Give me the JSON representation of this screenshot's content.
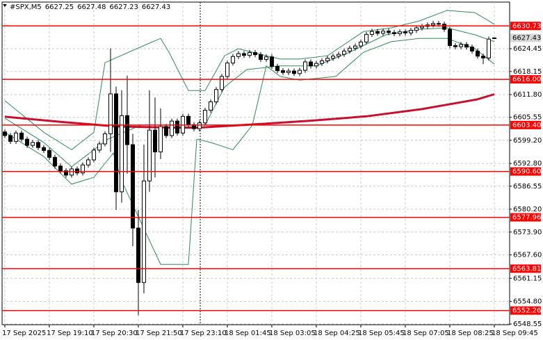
{
  "chart_data": {
    "type": "candlestick",
    "symbol": "#SPX,M5",
    "ylim": [
      6548.36,
      6637.3
    ],
    "xlim": [
      -0.5,
      90.75
    ],
    "grid": true,
    "bull_color": "#ffffff",
    "bear_color": "#000000",
    "yticks": [
      6624.45,
      6618.15,
      {
        "value": 6611.8,
        "label": "6611.80"
      },
      6605.55,
      {
        "value": 6599.2,
        "label": "6599.20"
      },
      {
        "value": 6592.8,
        "label": "6592.80"
      },
      6586.55,
      {
        "value": 6580.2,
        "label": "6580.20"
      },
      {
        "value": 6573.9,
        "label": "6573.90"
      },
      {
        "value": 6567.6,
        "label": "6567.60"
      },
      6561.15,
      {
        "value": 6554.8,
        "label": "6554.80"
      },
      6548.55
    ],
    "xticks": [
      {
        "value": 0,
        "label": "17 Sep 2025"
      },
      {
        "value": 8,
        "label": "17 Sep 19:10"
      },
      {
        "value": 16,
        "label": "17 Sep 20:30"
      },
      {
        "value": 24,
        "label": "17 Sep 21:50"
      },
      {
        "value": 32,
        "label": "17 Sep 23:10"
      },
      {
        "value": 40,
        "label": "18 Sep 01:45"
      },
      {
        "value": 48,
        "label": "18 Sep 03:05"
      },
      {
        "value": 56,
        "label": "18 Sep 04:25"
      },
      {
        "value": 64,
        "label": "18 Sep 05:45"
      },
      {
        "value": 72,
        "label": "18 Sep 07:05"
      },
      {
        "value": 80,
        "label": "18 Sep 08:25"
      },
      {
        "value": 88,
        "label": "18 Sep 09:45"
      }
    ],
    "open": [
      6601.5,
      6600.5,
      6598.9,
      6601.2,
      6599.5,
      6597.8,
      6598.6,
      6597.2,
      6596.4,
      6594.5,
      6592.1,
      6590.8,
      6589.6,
      6591.3,
      6590.2,
      6592.4,
      6593.8,
      6596.5,
      6598.2,
      6601.0,
      6612.0,
      6585.0,
      6606.0,
      6598.0,
      6575.0,
      6560.0,
      6588.0,
      6602.0,
      6596.0,
      6603.0,
      6600.5,
      6604.5,
      6601.2,
      6605.8,
      6603.5,
      6602.4,
      6604.0,
      6607.5,
      6609.8,
      6613.2,
      6616.8,
      6620.5,
      6622.3,
      6623.1,
      6622.6,
      6623.4,
      6622.8,
      6621.5,
      6622.2,
      6619.6,
      6618.4,
      6617.9,
      6618.3,
      6617.6,
      6618.5,
      6620.8,
      6619.7,
      6620.4,
      6621.1,
      6621.8,
      6622.4,
      6622.9,
      6623.8,
      6624.6,
      6625.2,
      6626.3,
      6628.4,
      6629.2,
      6628.7,
      6629.3,
      6628.9,
      6628.6,
      6629.1,
      6628.8,
      6629.5,
      6630.2,
      6630.6,
      6631.0,
      6631.4,
      6631.2,
      6629.8,
      6625.3,
      6625.0,
      6625.6,
      6624.9,
      6623.8,
      6622.4,
      6621.9,
      6627.25
    ],
    "high": [
      6602.2,
      6601.2,
      6601.9,
      6601.9,
      6600.2,
      6599.3,
      6599.3,
      6597.9,
      6597.1,
      6595.2,
      6592.8,
      6591.5,
      6592.0,
      6592.0,
      6593.1,
      6594.5,
      6597.2,
      6598.9,
      6601.7,
      6624.5,
      6614,
      6613,
      6617,
      6601,
      6580,
      6598,
      6613,
      6611,
      6608,
      6603.7,
      6605.2,
      6605.2,
      6606.5,
      6606.5,
      6604.2,
      6604.7,
      6608.2,
      6610.5,
      6613.9,
      6617.5,
      6621.2,
      6623.0,
      6623.8,
      6623.8,
      6624.1,
      6624.1,
      6623.5,
      6622.9,
      6622.9,
      6620.3,
      6619.1,
      6619.0,
      6619.0,
      6619.2,
      6621.5,
      6621.5,
      6621.1,
      6621.8,
      6622.5,
      6623.1,
      6623.6,
      6624.5,
      6625.3,
      6625.9,
      6627.0,
      6629.1,
      6629.9,
      6629.9,
      6630.0,
      6630.0,
      6629.6,
      6629.8,
      6629.8,
      6630.2,
      6630.9,
      6631.3,
      6631.7,
      6632.1,
      6632.1,
      6631.9,
      6630.5,
      6626.0,
      6626.3,
      6626.3,
      6625.6,
      6624.5,
      6623.1,
      6627.8,
      6627.48
    ],
    "low": [
      6599.8,
      6598.2,
      6598.2,
      6598.8,
      6597.1,
      6597.1,
      6596.5,
      6595.7,
      6593.8,
      6591.4,
      6590.1,
      6588.9,
      6588.9,
      6589.5,
      6589.5,
      6591.7,
      6593.1,
      6595.8,
      6597.5,
      6596,
      6580,
      6582,
      6590,
      6570,
      6551,
      6557,
      6585,
      6589,
      6594,
      6599.8,
      6599.8,
      6600.5,
      6600.5,
      6602.8,
      6601.7,
      6601.7,
      6603.3,
      6606.8,
      6609.1,
      6612.5,
      6616.1,
      6619.8,
      6621.6,
      6621.9,
      6621.9,
      6622.1,
      6620.8,
      6620.8,
      6618.9,
      6617.7,
      6617.2,
      6617.2,
      6616.9,
      6616.9,
      6617.8,
      6619.0,
      6619.0,
      6619.7,
      6620.4,
      6621.1,
      6621.7,
      6622.2,
      6623.1,
      6623.9,
      6624.5,
      6625.6,
      6627.7,
      6628.0,
      6628.0,
      6628.2,
      6627.9,
      6627.9,
      6628.1,
      6628.1,
      6628.8,
      6629.5,
      6629.9,
      6630.3,
      6630.5,
      6629.1,
      6624.6,
      6624.3,
      6624.3,
      6624.2,
      6623.1,
      6621.7,
      6620.2,
      6621.2,
      6627.23
    ],
    "close": [
      6600.5,
      6598.9,
      6601.2,
      6599.5,
      6597.8,
      6598.6,
      6597.2,
      6596.4,
      6594.5,
      6592.1,
      6590.8,
      6589.6,
      6591.3,
      6590.2,
      6592.4,
      6593.8,
      6596.5,
      6598.2,
      6601.0,
      6612.0,
      6585.0,
      6606.0,
      6598.0,
      6575.0,
      6560.0,
      6588.0,
      6602.0,
      6596.0,
      6603.0,
      6600.5,
      6604.5,
      6601.2,
      6605.8,
      6603.5,
      6602.4,
      6604.0,
      6607.5,
      6609.8,
      6613.2,
      6616.8,
      6620.5,
      6622.3,
      6623.1,
      6622.6,
      6623.4,
      6622.8,
      6621.5,
      6622.2,
      6619.6,
      6618.4,
      6617.9,
      6618.3,
      6617.6,
      6618.5,
      6620.8,
      6619.7,
      6620.4,
      6621.1,
      6621.8,
      6622.4,
      6622.9,
      6623.8,
      6624.6,
      6625.2,
      6626.3,
      6628.4,
      6629.2,
      6628.7,
      6629.3,
      6628.9,
      6628.6,
      6629.1,
      6628.8,
      6629.5,
      6630.2,
      6630.6,
      6631.0,
      6631.4,
      6631.2,
      6629.8,
      6625.3,
      6625.0,
      6625.6,
      6624.9,
      6623.8,
      6622.4,
      6621.9,
      6627.1,
      6627.43
    ],
    "lines": [
      {
        "color": "#2e8b57",
        "width": 1,
        "x": [
          0,
          7,
          12,
          16,
          18,
          26,
          28,
          29.5,
          33,
          36,
          39.5,
          42,
          47,
          49.5,
          53,
          58,
          64.5,
          69.5,
          74.5,
          79.5,
          84.5,
          88
        ],
        "values": [
          6610.1,
          6601.4,
          6596.6,
          6601.4,
          6620.6,
          6626.0,
          6627.3,
          6623.5,
          6612.9,
          6612.9,
          6622.5,
          6624.45,
          6622.5,
          6621.6,
          6621.6,
          6622.5,
          6629.2,
          6630.2,
          6632.1,
          6635.0,
          6634.4,
          6631.2
        ]
      },
      {
        "color": "#2e8b57",
        "width": 1,
        "x": [
          0,
          7,
          12,
          18.5,
          24.5,
          31,
          36,
          39.5,
          43.5,
          49.5,
          56,
          62,
          68.5,
          74.5,
          79.5,
          84.5,
          88
        ],
        "values": [
          6605.3,
          6598.6,
          6591.9,
          6599.5,
          6603.4,
          6603.4,
          6603.4,
          6613.9,
          6618.7,
          6619.7,
          6619.7,
          6623.5,
          6628.3,
          6629.8,
          6630.2,
          6628.3,
          6626.4
        ]
      },
      {
        "color": "#2e8b57",
        "width": 1,
        "x": [
          0,
          7,
          12,
          16,
          19.5,
          21,
          28,
          33,
          34.5,
          37,
          41,
          44.5,
          47,
          49.5,
          53,
          59.5,
          64.5,
          69.5,
          74.5,
          79.5,
          84.5,
          88
        ],
        "values": [
          6601.4,
          6594.7,
          6587.1,
          6589.0,
          6595.7,
          6588.0,
          6565.0,
          6565.0,
          6599.5,
          6598.6,
          6596.6,
          6603.4,
          6619.7,
          6616.8,
          6615.8,
          6616.8,
          6623.5,
          6626.4,
          6627.3,
          6627.3,
          6624.45,
          6620.2
        ]
      },
      {
        "color": "#c8102e",
        "width": 3,
        "x": [
          0,
          10,
          20,
          30,
          35,
          45,
          55,
          65,
          75,
          85,
          88
        ],
        "values": [
          6605.7,
          6604.3,
          6603.0,
          6602.7,
          6602.7,
          6603.6,
          6604.6,
          6605.8,
          6607.8,
          6610.5,
          6611.9
        ]
      }
    ],
    "level_color": "#ff0000",
    "levels": [
      6630.73,
      {
        "value": 6616,
        "label": "6616.00"
      },
      {
        "value": 6603.4,
        "label": "6603.40"
      },
      {
        "value": 6590.6,
        "label": "6590.60"
      },
      6577.96,
      6563.81,
      6552.26
    ]
  }
}
